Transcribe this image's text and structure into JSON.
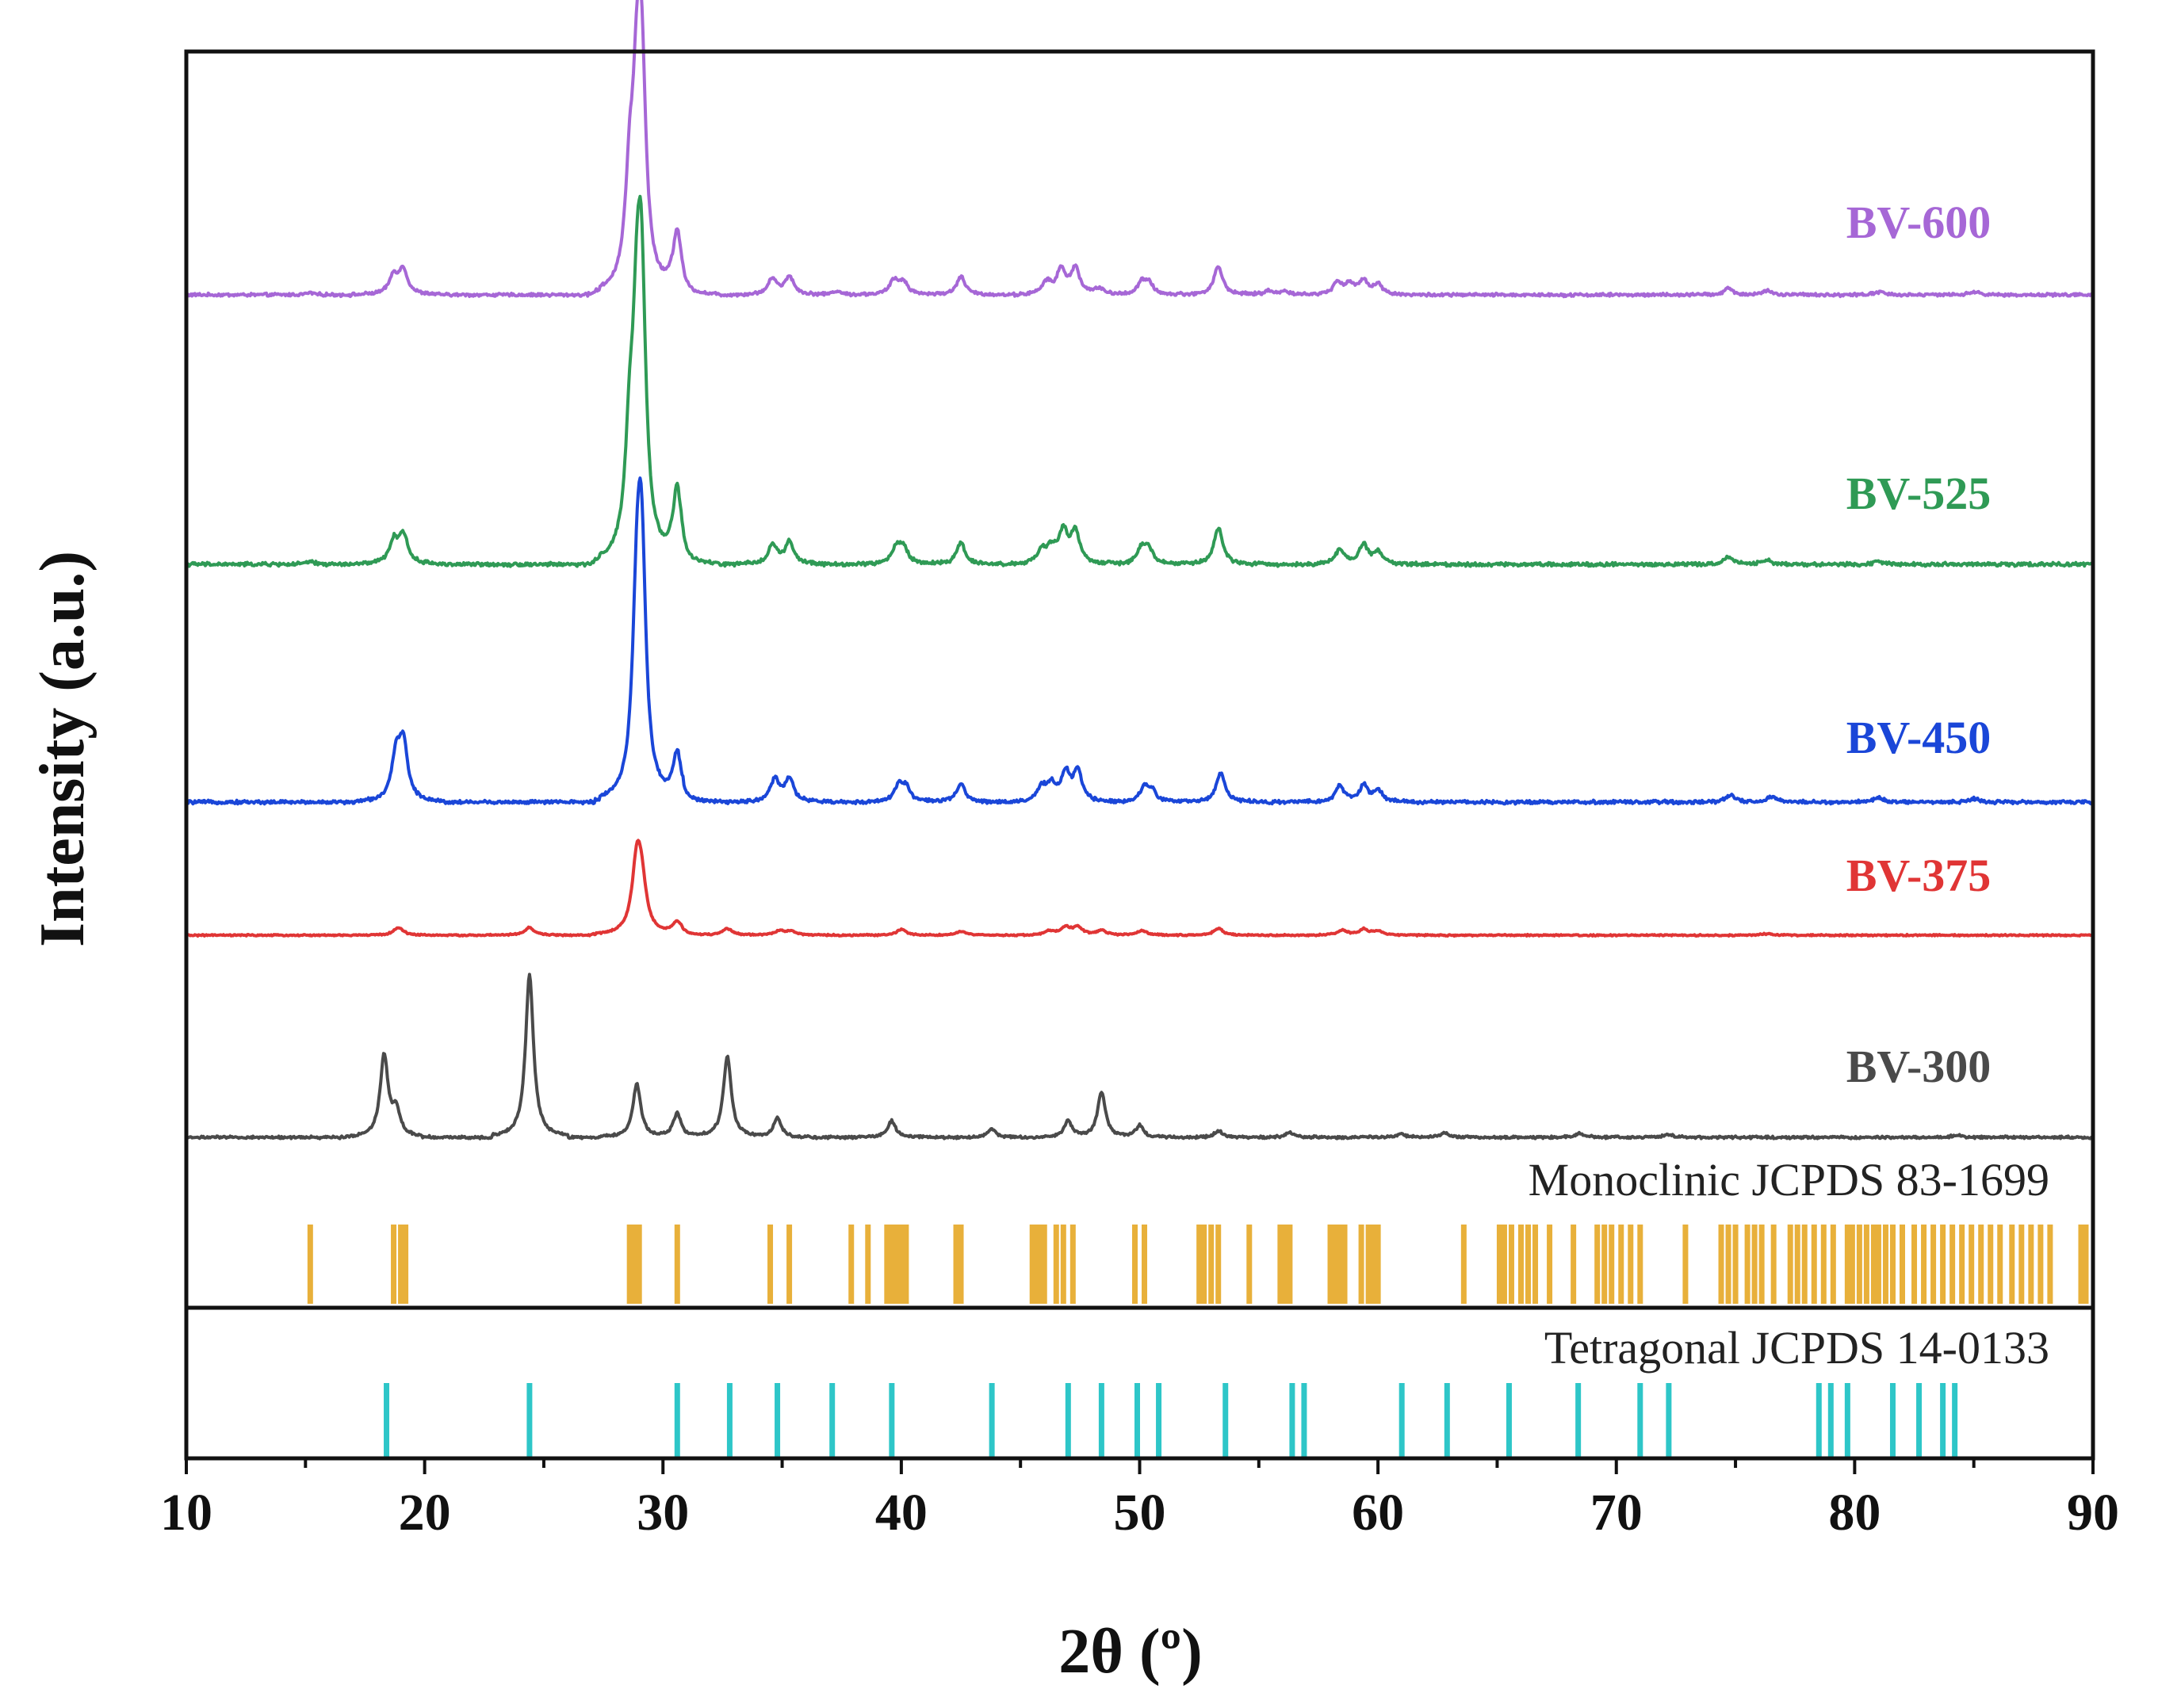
{
  "chart_data": {
    "type": "line",
    "xlabel": "2θ (º)",
    "ylabel": "Intensity (a.u.)",
    "xlim": [
      10,
      90
    ],
    "xticks": [
      10,
      20,
      30,
      40,
      50,
      60,
      70,
      80,
      90
    ],
    "grid": false,
    "series": [
      {
        "name": "BV-600",
        "color": "#a667d6",
        "peaks": [
          [
            15.2,
            0.01
          ],
          [
            18.7,
            0.09
          ],
          [
            19.1,
            0.12
          ],
          [
            28.6,
            0.45
          ],
          [
            28.9,
            0.72
          ],
          [
            29.1,
            1.0
          ],
          [
            30.6,
            0.3
          ],
          [
            34.6,
            0.08
          ],
          [
            35.3,
            0.09
          ],
          [
            37.3,
            0.02
          ],
          [
            39.7,
            0.07
          ],
          [
            40.1,
            0.06
          ],
          [
            42.5,
            0.09
          ],
          [
            46.1,
            0.06
          ],
          [
            46.7,
            0.12
          ],
          [
            47.3,
            0.13
          ],
          [
            48.3,
            0.03
          ],
          [
            50.1,
            0.06
          ],
          [
            50.4,
            0.05
          ],
          [
            53.3,
            0.14
          ],
          [
            55.4,
            0.02
          ],
          [
            56.1,
            0.02
          ],
          [
            58.3,
            0.06
          ],
          [
            58.8,
            0.05
          ],
          [
            59.4,
            0.07
          ],
          [
            60.0,
            0.05
          ],
          [
            74.7,
            0.03
          ],
          [
            76.3,
            0.02
          ],
          [
            81.0,
            0.015
          ],
          [
            85.0,
            0.015
          ]
        ],
        "width": 0.22
      },
      {
        "name": "BV-525",
        "color": "#2f9a55",
        "peaks": [
          [
            15.2,
            0.01
          ],
          [
            18.7,
            0.09
          ],
          [
            19.1,
            0.12
          ],
          [
            28.6,
            0.4
          ],
          [
            28.9,
            0.7
          ],
          [
            29.1,
            1.0
          ],
          [
            30.6,
            0.3
          ],
          [
            34.6,
            0.08
          ],
          [
            35.3,
            0.09
          ],
          [
            39.8,
            0.07
          ],
          [
            40.1,
            0.06
          ],
          [
            42.5,
            0.09
          ],
          [
            45.9,
            0.05
          ],
          [
            46.3,
            0.06
          ],
          [
            46.8,
            0.13
          ],
          [
            47.3,
            0.13
          ],
          [
            50.1,
            0.07
          ],
          [
            50.4,
            0.05
          ],
          [
            53.3,
            0.15
          ],
          [
            58.4,
            0.06
          ],
          [
            59.4,
            0.08
          ],
          [
            60.0,
            0.05
          ],
          [
            74.7,
            0.03
          ],
          [
            76.3,
            0.02
          ],
          [
            81.0,
            0.015
          ]
        ],
        "width": 0.22
      },
      {
        "name": "BV-450",
        "color": "#1a46d8",
        "peaks": [
          [
            18.8,
            0.18
          ],
          [
            19.1,
            0.25
          ],
          [
            28.9,
            0.7
          ],
          [
            29.1,
            1.0
          ],
          [
            30.6,
            0.2
          ],
          [
            34.7,
            0.1
          ],
          [
            35.3,
            0.1
          ],
          [
            39.9,
            0.07
          ],
          [
            40.2,
            0.06
          ],
          [
            42.5,
            0.08
          ],
          [
            45.9,
            0.06
          ],
          [
            46.3,
            0.07
          ],
          [
            46.9,
            0.12
          ],
          [
            47.4,
            0.13
          ],
          [
            50.2,
            0.06
          ],
          [
            50.5,
            0.05
          ],
          [
            53.4,
            0.13
          ],
          [
            58.4,
            0.07
          ],
          [
            59.4,
            0.07
          ],
          [
            60.0,
            0.05
          ],
          [
            74.8,
            0.03
          ],
          [
            76.5,
            0.025
          ],
          [
            81.0,
            0.02
          ],
          [
            85.0,
            0.015
          ]
        ],
        "width": 0.22
      },
      {
        "name": "BV-375",
        "color": "#e03535",
        "peaks": [
          [
            18.9,
            0.08
          ],
          [
            24.4,
            0.08
          ],
          [
            28.9,
            0.7
          ],
          [
            29.1,
            0.45
          ],
          [
            30.6,
            0.13
          ],
          [
            32.7,
            0.07
          ],
          [
            34.9,
            0.05
          ],
          [
            35.4,
            0.04
          ],
          [
            40.0,
            0.06
          ],
          [
            42.5,
            0.04
          ],
          [
            46.2,
            0.04
          ],
          [
            46.9,
            0.08
          ],
          [
            47.4,
            0.08
          ],
          [
            48.4,
            0.05
          ],
          [
            50.1,
            0.05
          ],
          [
            53.3,
            0.07
          ],
          [
            58.5,
            0.05
          ],
          [
            59.4,
            0.06
          ],
          [
            60.0,
            0.04
          ],
          [
            76.3,
            0.015
          ]
        ],
        "width": 0.24
      },
      {
        "name": "BV-300",
        "color": "#4a4a4a",
        "peaks": [
          [
            18.3,
            0.5
          ],
          [
            18.8,
            0.15
          ],
          [
            24.4,
            1.0
          ],
          [
            28.9,
            0.33
          ],
          [
            30.6,
            0.15
          ],
          [
            32.7,
            0.5
          ],
          [
            34.8,
            0.12
          ],
          [
            39.6,
            0.1
          ],
          [
            43.8,
            0.05
          ],
          [
            47.0,
            0.1
          ],
          [
            48.4,
            0.28
          ],
          [
            50.0,
            0.07
          ],
          [
            53.3,
            0.04
          ],
          [
            56.3,
            0.03
          ],
          [
            61.0,
            0.02
          ],
          [
            62.8,
            0.03
          ],
          [
            68.5,
            0.025
          ],
          [
            72.2,
            0.02
          ],
          [
            84.3,
            0.015
          ]
        ],
        "width": 0.2
      }
    ],
    "reference_patterns": [
      {
        "name": "Monoclinic JCPDS 83-1699",
        "color": "#e8b03a",
        "positions": [
          15.2,
          18.7,
          19.0,
          19.2,
          28.6,
          28.8,
          29.0,
          30.6,
          34.5,
          35.3,
          37.9,
          38.6,
          39.4,
          39.6,
          39.8,
          40.0,
          40.2,
          42.3,
          42.5,
          45.5,
          45.6,
          45.8,
          46.0,
          46.5,
          46.8,
          47.2,
          49.8,
          50.2,
          52.5,
          52.7,
          53.0,
          53.3,
          54.6,
          55.9,
          56.1,
          56.3,
          58.0,
          58.2,
          58.4,
          58.6,
          59.3,
          59.6,
          59.8,
          60.0,
          63.6,
          65.1,
          65.3,
          65.6,
          66.0,
          66.3,
          66.6,
          67.2,
          68.2,
          69.2,
          69.5,
          69.8,
          70.2,
          70.6,
          71.0,
          72.9,
          74.4,
          74.7,
          75.0,
          75.5,
          75.8,
          76.1,
          76.6,
          77.3,
          77.6,
          77.9,
          78.3,
          78.7,
          79.1,
          79.7,
          79.9,
          80.2,
          80.5,
          80.8,
          81.0,
          81.3,
          81.6,
          82.0,
          82.5,
          82.9,
          83.3,
          83.7,
          84.1,
          84.5,
          84.9,
          85.3,
          85.7,
          86.1,
          86.6,
          87.0,
          87.4,
          87.8,
          88.2,
          89.5,
          89.7
        ]
      },
      {
        "name": "Tetragonal JCPDS 14-0133",
        "color": "#2ec6c8",
        "positions": [
          18.4,
          24.4,
          30.6,
          32.8,
          34.8,
          37.1,
          39.6,
          43.8,
          47.0,
          48.4,
          49.9,
          50.8,
          53.6,
          56.4,
          56.9,
          61.0,
          62.9,
          65.5,
          68.4,
          71.0,
          72.2,
          78.5,
          79.0,
          79.7,
          81.6,
          82.7,
          83.7,
          84.2
        ]
      }
    ]
  }
}
